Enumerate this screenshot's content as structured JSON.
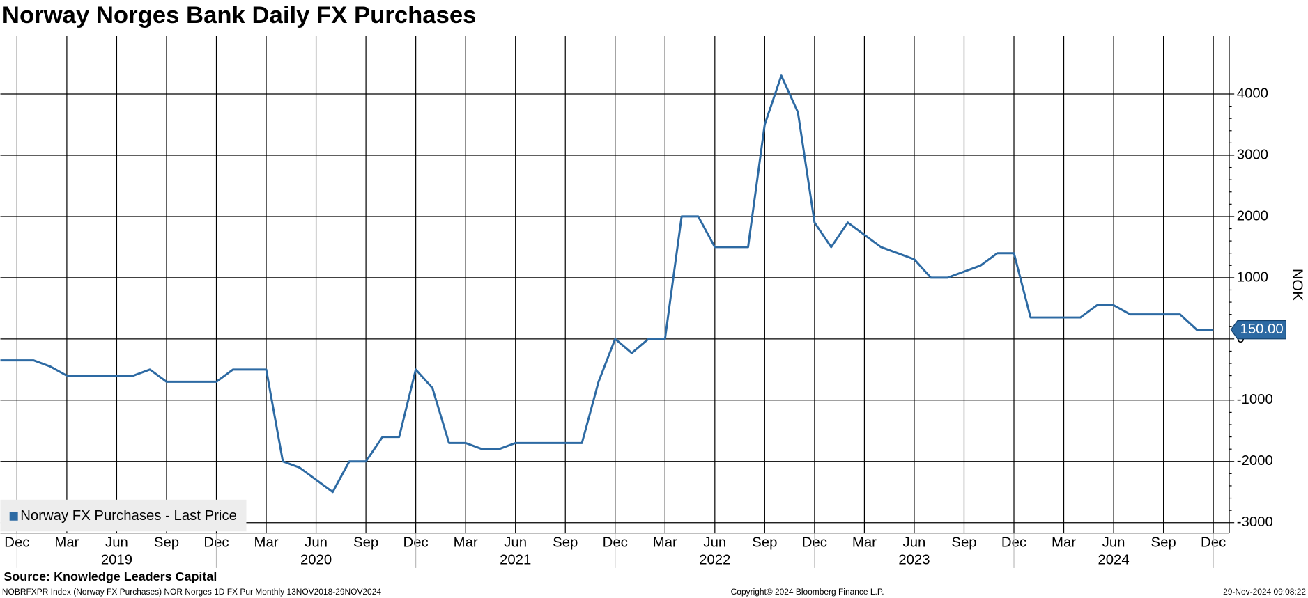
{
  "chart_data": {
    "type": "line",
    "title": "Norway Norges Bank Daily FX Purchases",
    "y_label": "NOK",
    "x": [
      "2018-11",
      "2018-12",
      "2019-01",
      "2019-02",
      "2019-03",
      "2019-04",
      "2019-05",
      "2019-06",
      "2019-07",
      "2019-08",
      "2019-09",
      "2019-10",
      "2019-11",
      "2019-12",
      "2020-01",
      "2020-02",
      "2020-03",
      "2020-04",
      "2020-05",
      "2020-06",
      "2020-07",
      "2020-08",
      "2020-09",
      "2020-10",
      "2020-11",
      "2020-12",
      "2021-01",
      "2021-02",
      "2021-03",
      "2021-04",
      "2021-05",
      "2021-06",
      "2021-07",
      "2021-08",
      "2021-09",
      "2021-10",
      "2021-11",
      "2021-12",
      "2022-01",
      "2022-02",
      "2022-03",
      "2022-04",
      "2022-05",
      "2022-06",
      "2022-07",
      "2022-08",
      "2022-09",
      "2022-10",
      "2022-11",
      "2022-12",
      "2023-01",
      "2023-02",
      "2023-03",
      "2023-04",
      "2023-05",
      "2023-06",
      "2023-07",
      "2023-08",
      "2023-09",
      "2023-10",
      "2023-11",
      "2023-12",
      "2024-01",
      "2024-02",
      "2024-03",
      "2024-04",
      "2024-05",
      "2024-06",
      "2024-07",
      "2024-08",
      "2024-09",
      "2024-10",
      "2024-11",
      "2024-12"
    ],
    "series": [
      {
        "name": "Norway FX Purchases - Last Price",
        "color": "#2d6aa3",
        "values": [
          -350,
          -350,
          -350,
          -450,
          -600,
          -600,
          -600,
          -600,
          -600,
          -500,
          -700,
          -700,
          -700,
          -700,
          -500,
          -500,
          -500,
          -2000,
          -2100,
          -2300,
          -2500,
          -2000,
          -2000,
          -1600,
          -1600,
          -500,
          -800,
          -1700,
          -1700,
          -1800,
          -1800,
          -1700,
          -1700,
          -1700,
          -1700,
          -1700,
          -700,
          0,
          -230,
          0,
          0,
          2000,
          2000,
          1500,
          1500,
          1500,
          3500,
          4300,
          3700,
          1900,
          1500,
          1900,
          1700,
          1500,
          1400,
          1300,
          1000,
          1000,
          1100,
          1200,
          1400,
          1400,
          350,
          350,
          350,
          350,
          550,
          550,
          400,
          400,
          400,
          400,
          150,
          150
        ]
      }
    ],
    "last_price_label": "150.00",
    "ylim": [
      -3170,
      4950
    ],
    "yticks": [
      -3000,
      -2000,
      -1000,
      0,
      1000,
      2000,
      3000,
      4000
    ],
    "xticks": [
      {
        "value": "2018-12",
        "label": "Dec"
      },
      {
        "value": "2019-03",
        "label": "Mar"
      },
      {
        "value": "2019-06",
        "label": "Jun"
      },
      {
        "value": "2019-09",
        "label": "Sep"
      },
      {
        "value": "2019-12",
        "label": "Dec"
      },
      {
        "value": "2020-03",
        "label": "Mar"
      },
      {
        "value": "2020-06",
        "label": "Jun"
      },
      {
        "value": "2020-09",
        "label": "Sep"
      },
      {
        "value": "2020-12",
        "label": "Dec"
      },
      {
        "value": "2021-03",
        "label": "Mar"
      },
      {
        "value": "2021-06",
        "label": "Jun"
      },
      {
        "value": "2021-09",
        "label": "Sep"
      },
      {
        "value": "2021-12",
        "label": "Dec"
      },
      {
        "value": "2022-03",
        "label": "Mar"
      },
      {
        "value": "2022-06",
        "label": "Jun"
      },
      {
        "value": "2022-09",
        "label": "Sep"
      },
      {
        "value": "2022-12",
        "label": "Dec"
      },
      {
        "value": "2023-03",
        "label": "Mar"
      },
      {
        "value": "2023-06",
        "label": "Jun"
      },
      {
        "value": "2023-09",
        "label": "Sep"
      },
      {
        "value": "2023-12",
        "label": "Dec"
      },
      {
        "value": "2024-03",
        "label": "Mar"
      },
      {
        "value": "2024-06",
        "label": "Jun"
      },
      {
        "value": "2024-09",
        "label": "Sep"
      },
      {
        "value": "2024-12",
        "label": "Dec"
      }
    ],
    "year_labels": [
      "2019",
      "2020",
      "2021",
      "2022",
      "2023",
      "2024"
    ],
    "grid": true,
    "legend": "lower left",
    "source": "Source: Knowledge Leaders Capital",
    "footer_left": "NOBRFXPR Index (Norway FX Purchases) NOR Norges 1D FX Pur  Monthly 13NOV2018-29NOV2024",
    "footer_center": "Copyright© 2024 Bloomberg Finance L.P.",
    "footer_right": "29-Nov-2024 09:08:22"
  }
}
